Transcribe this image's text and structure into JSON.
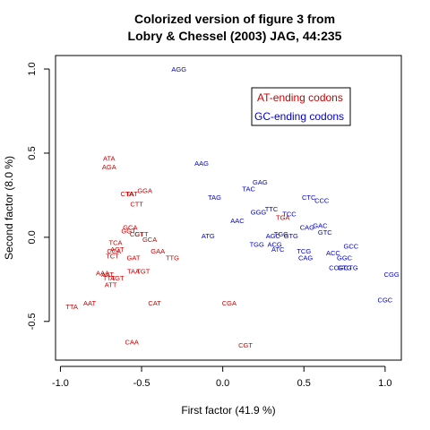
{
  "chart_data": {
    "type": "scatter",
    "title_line1": "Colorized version of figure 3 from",
    "title_line2": "Lobry & Chessel (2003) JAG, 44:235",
    "xlabel": "First factor (41.9 %)",
    "ylabel": "Second factor (8.0 %)",
    "xlim": [
      -1.03,
      1.1
    ],
    "ylim": [
      -0.73,
      1.08
    ],
    "xticks": [
      -1.0,
      -0.5,
      0.0,
      0.5,
      1.0
    ],
    "xtick_labels": [
      "-1.0",
      "-0.5",
      "0.0",
      "0.5",
      "1.0"
    ],
    "yticks": [
      -0.5,
      0.0,
      0.5,
      1.0
    ],
    "ytick_labels": [
      "-0.5",
      "0.0",
      "0.5",
      "1.0"
    ],
    "grid": false,
    "legend_position": "top-right",
    "series": [
      {
        "name": "AT-ending codons",
        "color": "#cc0000",
        "points": [
          {
            "label": "ATA",
            "x": -0.7,
            "y": 0.47
          },
          {
            "label": "AGA",
            "x": -0.7,
            "y": 0.42
          },
          {
            "label": "CTA",
            "x": -0.59,
            "y": 0.26
          },
          {
            "label": "TAT",
            "x": -0.56,
            "y": 0.26
          },
          {
            "label": "GGA",
            "x": -0.48,
            "y": 0.28
          },
          {
            "label": "CTT",
            "x": -0.53,
            "y": 0.2
          },
          {
            "label": "GCA",
            "x": -0.57,
            "y": 0.06
          },
          {
            "label": "GGT",
            "x": -0.58,
            "y": 0.04
          },
          {
            "label": "CCT",
            "x": -0.53,
            "y": 0.02
          },
          {
            "label": "GTT",
            "x": -0.5,
            "y": 0.02
          },
          {
            "label": "GCA",
            "x": -0.45,
            "y": -0.01
          },
          {
            "label": "TCA",
            "x": -0.66,
            "y": -0.03
          },
          {
            "label": "AGT",
            "x": -0.65,
            "y": -0.07
          },
          {
            "label": "CCA",
            "x": -0.67,
            "y": -0.08
          },
          {
            "label": "GAA",
            "x": -0.4,
            "y": -0.08
          },
          {
            "label": "TCT",
            "x": -0.68,
            "y": -0.11
          },
          {
            "label": "GAT",
            "x": -0.55,
            "y": -0.12
          },
          {
            "label": "TTG",
            "x": -0.31,
            "y": -0.12
          },
          {
            "label": "AAA",
            "x": -0.74,
            "y": -0.21
          },
          {
            "label": "AAT",
            "x": -0.71,
            "y": -0.22
          },
          {
            "label": "TTT",
            "x": -0.7,
            "y": -0.24
          },
          {
            "label": "AGT",
            "x": -0.65,
            "y": -0.24
          },
          {
            "label": "TAA",
            "x": -0.55,
            "y": -0.2
          },
          {
            "label": "TGT",
            "x": -0.49,
            "y": -0.2
          },
          {
            "label": "ATT",
            "x": -0.69,
            "y": -0.28
          },
          {
            "label": "TTA",
            "x": -0.93,
            "y": -0.41
          },
          {
            "label": "AAT",
            "x": -0.82,
            "y": -0.39
          },
          {
            "label": "CAT",
            "x": -0.42,
            "y": -0.39
          },
          {
            "label": "CAA",
            "x": -0.56,
            "y": -0.62
          },
          {
            "label": "TGA",
            "x": 0.37,
            "y": 0.12
          },
          {
            "label": "CGA",
            "x": 0.04,
            "y": -0.39
          },
          {
            "label": "CGT",
            "x": 0.14,
            "y": -0.64
          }
        ]
      },
      {
        "name": "GC-ending codons",
        "color": "#0000cc",
        "points": [
          {
            "label": "AGG",
            "x": -0.27,
            "y": 1.0
          },
          {
            "label": "AAG",
            "x": -0.13,
            "y": 0.44
          },
          {
            "label": "GAG",
            "x": 0.23,
            "y": 0.33
          },
          {
            "label": "TAC",
            "x": 0.16,
            "y": 0.29
          },
          {
            "label": "TAG",
            "x": -0.05,
            "y": 0.24
          },
          {
            "label": "CTC",
            "x": 0.53,
            "y": 0.24
          },
          {
            "label": "CCC",
            "x": 0.61,
            "y": 0.22
          },
          {
            "label": "TTC",
            "x": 0.3,
            "y": 0.17
          },
          {
            "label": "GGG",
            "x": 0.22,
            "y": 0.15
          },
          {
            "label": "TCC",
            "x": 0.41,
            "y": 0.14
          },
          {
            "label": "AAC",
            "x": 0.09,
            "y": 0.1
          },
          {
            "label": "CAG",
            "x": 0.52,
            "y": 0.06
          },
          {
            "label": "GAC",
            "x": 0.6,
            "y": 0.07
          },
          {
            "label": "GTC",
            "x": 0.63,
            "y": 0.03
          },
          {
            "label": "ATG",
            "x": -0.09,
            "y": 0.01
          },
          {
            "label": "AGC",
            "x": 0.31,
            "y": 0.01
          },
          {
            "label": "TGG",
            "x": 0.36,
            "y": 0.02
          },
          {
            "label": "GTG",
            "x": 0.42,
            "y": 0.01
          },
          {
            "label": "TGG",
            "x": 0.21,
            "y": -0.04
          },
          {
            "label": "ACG",
            "x": 0.32,
            "y": -0.04
          },
          {
            "label": "ATC",
            "x": 0.34,
            "y": -0.07
          },
          {
            "label": "TCG",
            "x": 0.5,
            "y": -0.08
          },
          {
            "label": "CAG",
            "x": 0.51,
            "y": -0.12
          },
          {
            "label": "ACC",
            "x": 0.68,
            "y": -0.09
          },
          {
            "label": "GCC",
            "x": 0.79,
            "y": -0.05
          },
          {
            "label": "GGC",
            "x": 0.75,
            "y": -0.12
          },
          {
            "label": "CCG",
            "x": 0.7,
            "y": -0.18
          },
          {
            "label": "CTG",
            "x": 0.79,
            "y": -0.18
          },
          {
            "label": "GTG",
            "x": 0.75,
            "y": -0.18
          },
          {
            "label": "CGG",
            "x": 1.04,
            "y": -0.22
          },
          {
            "label": "CGC",
            "x": 1.0,
            "y": -0.37
          }
        ]
      }
    ]
  }
}
